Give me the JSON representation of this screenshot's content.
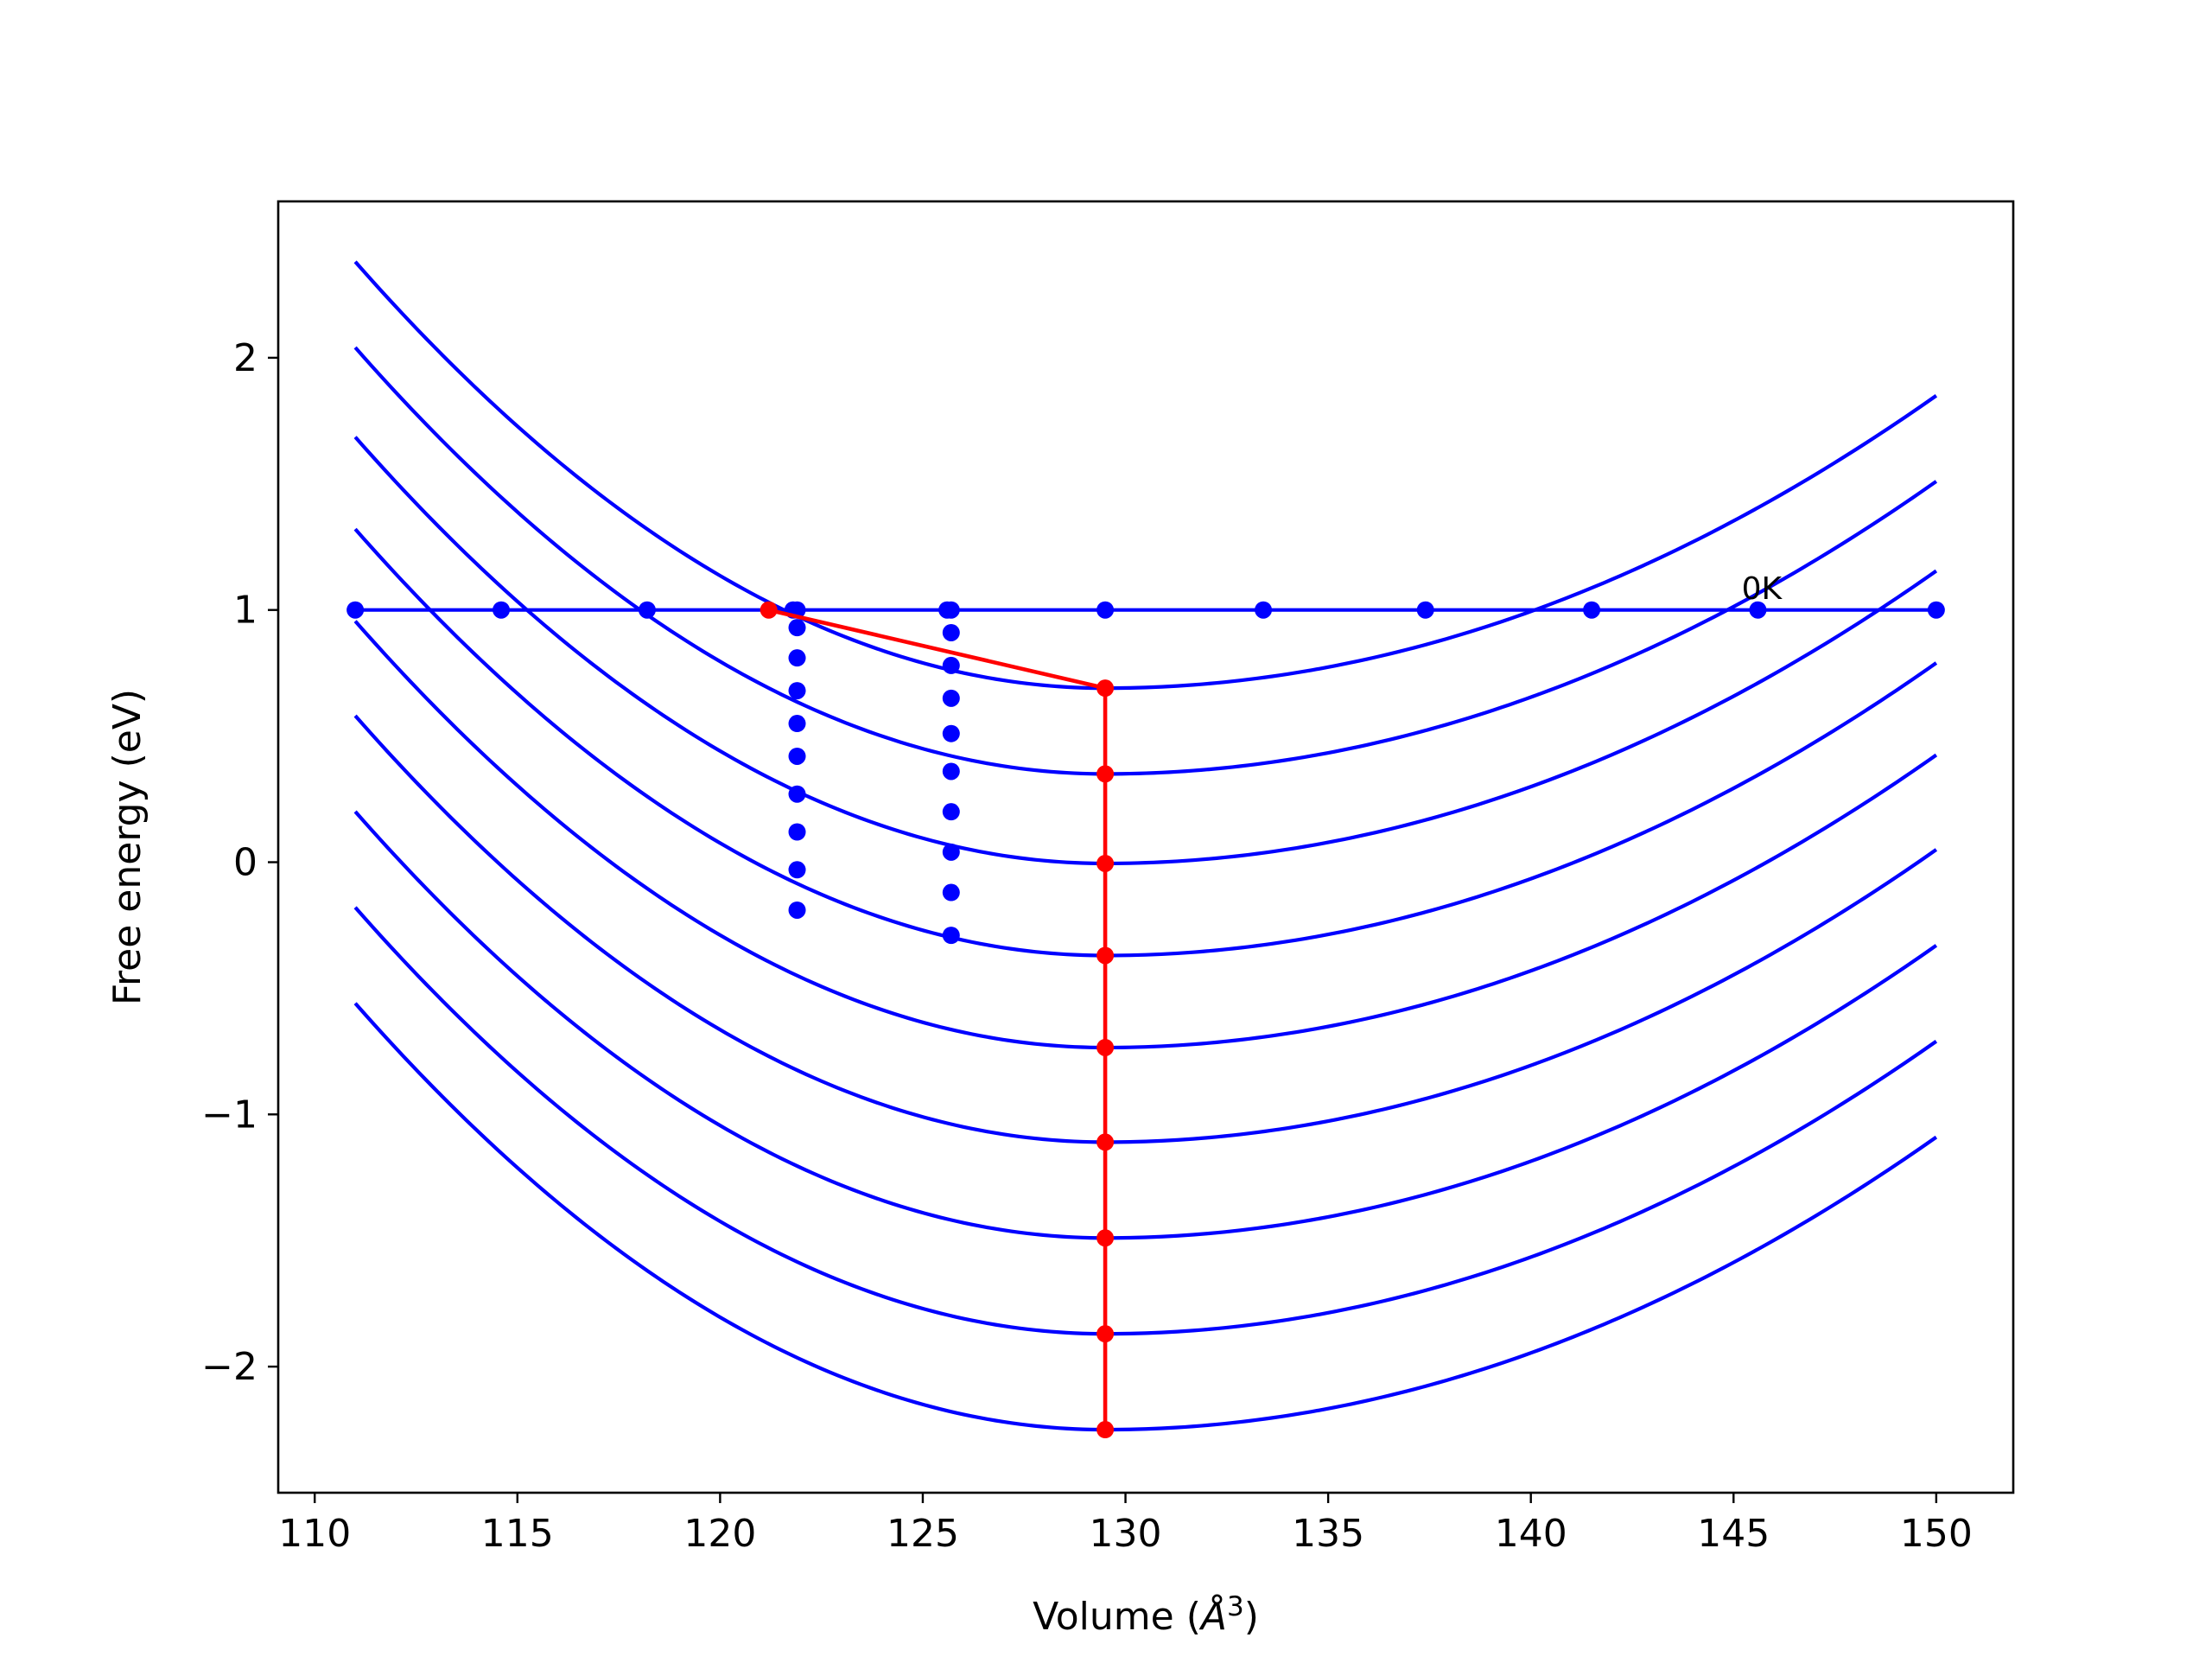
{
  "chart_data": {
    "type": "line",
    "title": "",
    "xlabel": "Volume (",
    "xlabel_symbol": "Å",
    "xlabel_exponent": "3",
    "xlabel_suffix": ")",
    "ylabel": "Free energy (eV)",
    "xlim": [
      109.1,
      151.9
    ],
    "ylim": [
      -2.5,
      2.62
    ],
    "xticks": [
      110,
      115,
      120,
      125,
      130,
      135,
      140,
      145,
      150
    ],
    "xtick_labels": [
      "110",
      "115",
      "120",
      "125",
      "130",
      "135",
      "140",
      "145",
      "150"
    ],
    "yticks": [
      -2,
      -1,
      0,
      1,
      2
    ],
    "ytick_labels": [
      "−2",
      "−1",
      "0",
      "1",
      "2"
    ],
    "grid": false,
    "colors": {
      "curves": "#0000ff",
      "path": "#ff0000",
      "axes": "#000000"
    },
    "annotation": {
      "text": "0K",
      "x": 145.2,
      "y": 1.05
    },
    "curve_model": {
      "x_min": 111,
      "x_max": 150,
      "x_center": 129.5,
      "left_coef": 0.00494,
      "right_coef": 0.00276
    },
    "curve_minima": [
      0.69,
      0.35,
      -0.005,
      -0.37,
      -0.735,
      -1.11,
      -1.49,
      -1.87,
      -2.25
    ],
    "horizontal_line": {
      "y": 1.0,
      "x": [
        111,
        114.6,
        118.2,
        121.8,
        125.6,
        129.5,
        133.4,
        137.4,
        141.5,
        145.6,
        150
      ]
    },
    "dotted_columns": [
      {
        "x": 121.9,
        "y": [
          1.0,
          0.93,
          0.81,
          0.68,
          0.55,
          0.42,
          0.27,
          0.12,
          -0.03,
          -0.19
        ]
      },
      {
        "x": 125.7,
        "y": [
          1.0,
          0.91,
          0.78,
          0.65,
          0.51,
          0.36,
          0.2,
          0.04,
          -0.12,
          -0.29
        ]
      }
    ],
    "path": {
      "x": [
        121.2,
        129.5,
        129.5,
        129.5,
        129.5,
        129.5,
        129.5,
        129.5,
        129.5,
        129.5
      ],
      "y": [
        1.0,
        0.69,
        0.35,
        -0.005,
        -0.37,
        -0.735,
        -1.11,
        -1.49,
        -1.87,
        -2.25
      ]
    }
  }
}
